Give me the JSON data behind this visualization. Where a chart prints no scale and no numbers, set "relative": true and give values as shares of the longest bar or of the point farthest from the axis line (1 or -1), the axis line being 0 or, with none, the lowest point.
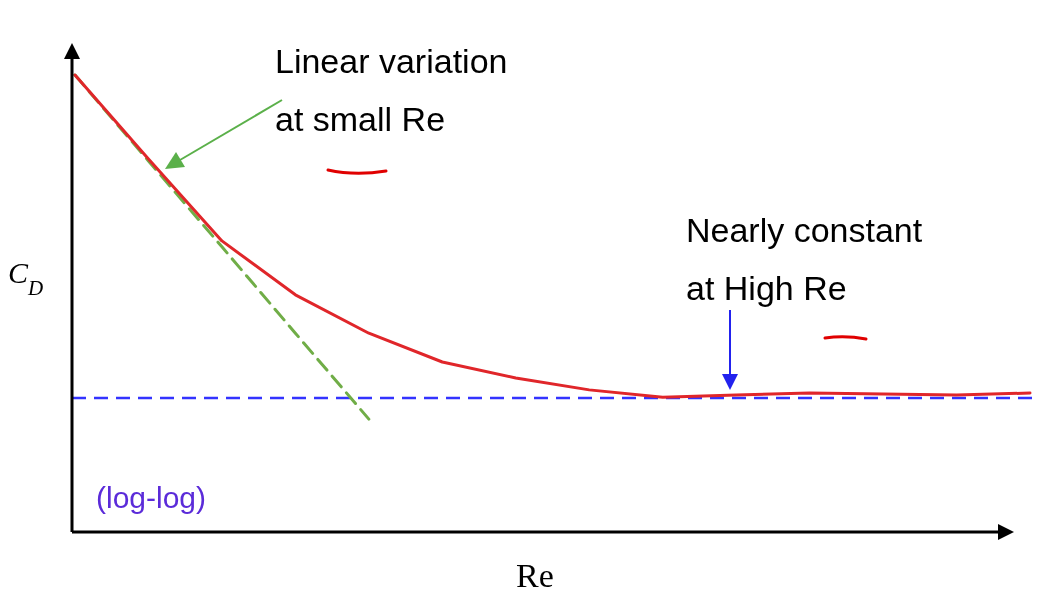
{
  "chart_data": {
    "type": "line",
    "relative": true,
    "xlabel": "Re",
    "ylabel": "C$_{D}$",
    "categories": [
      null,
      null,
      null,
      null,
      null,
      null,
      null,
      null,
      null,
      null,
      null,
      null,
      null,
      null
    ],
    "series": [
      {
        "color": "#70ad47",
        "line_style": "dashed",
        "values": [
          1,
          0.812,
          0.624,
          0.435,
          0.247,
          null,
          null,
          null,
          null,
          null,
          null,
          null,
          null,
          null
        ]
      },
      {
        "color": "#e0262a",
        "line_style": "solid",
        "values": [
          1,
          0.816,
          0.637,
          0.519,
          0.435,
          0.372,
          0.337,
          0.311,
          0.295,
          0.3,
          0.304,
          0.302,
          0.3,
          0.304
        ]
      }
    ],
    "ref_lines": [
      {
        "axis": "y",
        "value": 0.293,
        "color": "#3333ff",
        "line_style": "dashed"
      }
    ],
    "annotations": [
      "Linear variation at small Re",
      "Nearly constant at High Re",
      "(log-log)"
    ]
  }
}
